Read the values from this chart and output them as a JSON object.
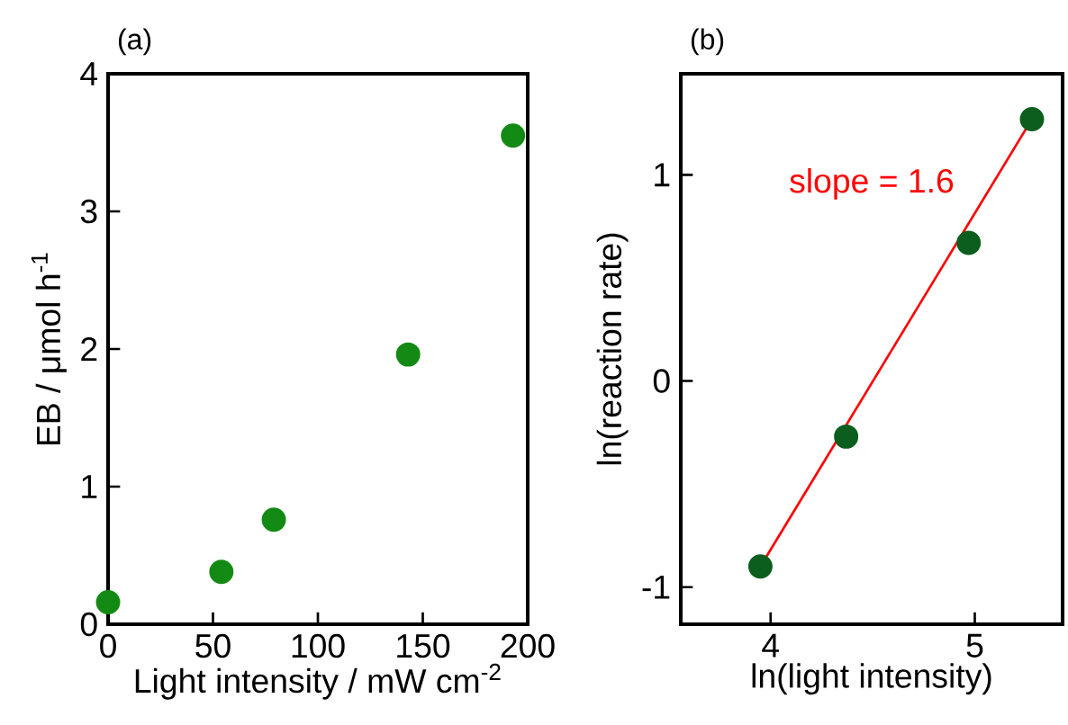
{
  "chart_data": [
    {
      "type": "scatter",
      "title": "(a)",
      "xlabel": "Light intensity / mW cm$^{-2}$",
      "ylabel": "EB / μmol h$^{-1}$",
      "marker": "circle",
      "xlim": [
        0,
        200
      ],
      "ylim": [
        0,
        4
      ],
      "xticks": [
        0,
        50,
        100,
        150,
        200
      ],
      "yticks": [
        0,
        1,
        2,
        3,
        4
      ],
      "series": [
        {
          "color": "#138a13",
          "x": [
            0,
            54,
            79,
            143,
            193
          ],
          "values": [
            0.16,
            0.38,
            0.76,
            1.96,
            3.55
          ]
        }
      ]
    },
    {
      "type": "scatter",
      "title": "(b)",
      "xlabel": "ln(light intensity)",
      "ylabel": "ln(reaction rate)",
      "xlim": [
        3.56,
        5.43
      ],
      "ylim": [
        -1.18,
        1.49
      ],
      "xticks": [
        4,
        5
      ],
      "yticks": [
        -1,
        0,
        1
      ],
      "annotations": [
        "slope = 1.6"
      ],
      "series": [
        {
          "type": "line",
          "color": "#ff0000",
          "x": [
            3.95,
            5.28
          ],
          "values": [
            -0.9,
            1.27
          ]
        },
        {
          "color": "#0b5e1e",
          "marker": "circle",
          "x": [
            3.95,
            4.37,
            4.97,
            5.28
          ],
          "values": [
            -0.9,
            -0.27,
            0.67,
            1.27
          ]
        }
      ]
    }
  ]
}
